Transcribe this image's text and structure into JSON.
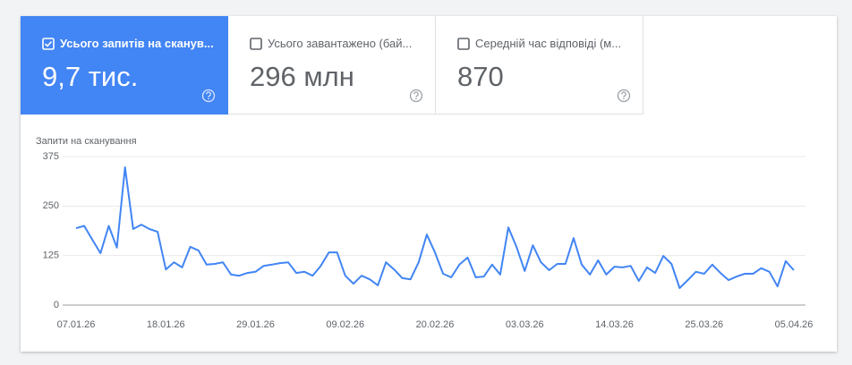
{
  "tiles": [
    {
      "label": "Усього запитів на сканув...",
      "value": "9,7 тис.",
      "selected": true
    },
    {
      "label": "Усього завантажено (бай...",
      "value": "296 млн",
      "selected": false
    },
    {
      "label": "Середній час відповіді (м...",
      "value": "870",
      "selected": false
    }
  ],
  "chart_data": {
    "type": "line",
    "y_label": "Запити на сканування",
    "color": "#4285f4",
    "grid": true,
    "x": [
      "07.01.26",
      "08.01.26",
      "09.01.26",
      "10.01.26",
      "11.01.26",
      "12.01.26",
      "13.01.26",
      "14.01.26",
      "15.01.26",
      "16.01.26",
      "17.01.26",
      "18.01.26",
      "19.01.26",
      "20.01.26",
      "21.01.26",
      "22.01.26",
      "23.01.26",
      "24.01.26",
      "25.01.26",
      "26.01.26",
      "27.01.26",
      "28.01.26",
      "29.01.26",
      "30.01.26",
      "31.01.26",
      "01.02.26",
      "02.02.26",
      "03.02.26",
      "04.02.26",
      "05.02.26",
      "06.02.26",
      "07.02.26",
      "08.02.26",
      "09.02.26",
      "10.02.26",
      "11.02.26",
      "12.02.26",
      "13.02.26",
      "14.02.26",
      "15.02.26",
      "16.02.26",
      "17.02.26",
      "18.02.26",
      "19.02.26",
      "20.02.26",
      "21.02.26",
      "22.02.26",
      "23.02.26",
      "24.02.26",
      "25.02.26",
      "26.02.26",
      "27.02.26",
      "28.02.26",
      "01.03.26",
      "02.03.26",
      "03.03.26",
      "04.03.26",
      "05.03.26",
      "06.03.26",
      "07.03.26",
      "08.03.26",
      "09.03.26",
      "10.03.26",
      "11.03.26",
      "12.03.26",
      "13.03.26",
      "14.03.26",
      "15.03.26",
      "16.03.26",
      "17.03.26",
      "18.03.26",
      "19.03.26",
      "20.03.26",
      "21.03.26",
      "22.03.26",
      "23.03.26",
      "24.03.26",
      "25.03.26",
      "26.03.26",
      "27.03.26",
      "28.03.26",
      "29.03.26",
      "30.03.26",
      "31.03.26",
      "01.04.26",
      "02.04.26",
      "03.04.26",
      "04.04.26",
      "05.04.26"
    ],
    "values": [
      194,
      200,
      165,
      131,
      200,
      145,
      348,
      192,
      203,
      192,
      185,
      90,
      108,
      95,
      147,
      138,
      102,
      104,
      108,
      77,
      74,
      81,
      84,
      99,
      102,
      106,
      108,
      81,
      84,
      74,
      99,
      133,
      133,
      74,
      54,
      74,
      65,
      50,
      108,
      90,
      68,
      65,
      108,
      178,
      133,
      79,
      70,
      102,
      120,
      70,
      72,
      102,
      77,
      196,
      147,
      86,
      151,
      108,
      88,
      104,
      104,
      169,
      102,
      77,
      113,
      77,
      97,
      95,
      99,
      61,
      95,
      81,
      124,
      104,
      43,
      63,
      84,
      79,
      102,
      81,
      63,
      72,
      79,
      79,
      93,
      84,
      47,
      111,
      88
    ],
    "xticks": [
      "07.01.26",
      "18.01.26",
      "29.01.26",
      "09.02.26",
      "20.02.26",
      "03.03.26",
      "14.03.26",
      "25.03.26",
      "05.04.26"
    ],
    "ylim": [
      0,
      375
    ],
    "yticks": [
      0,
      125,
      250,
      375
    ]
  }
}
